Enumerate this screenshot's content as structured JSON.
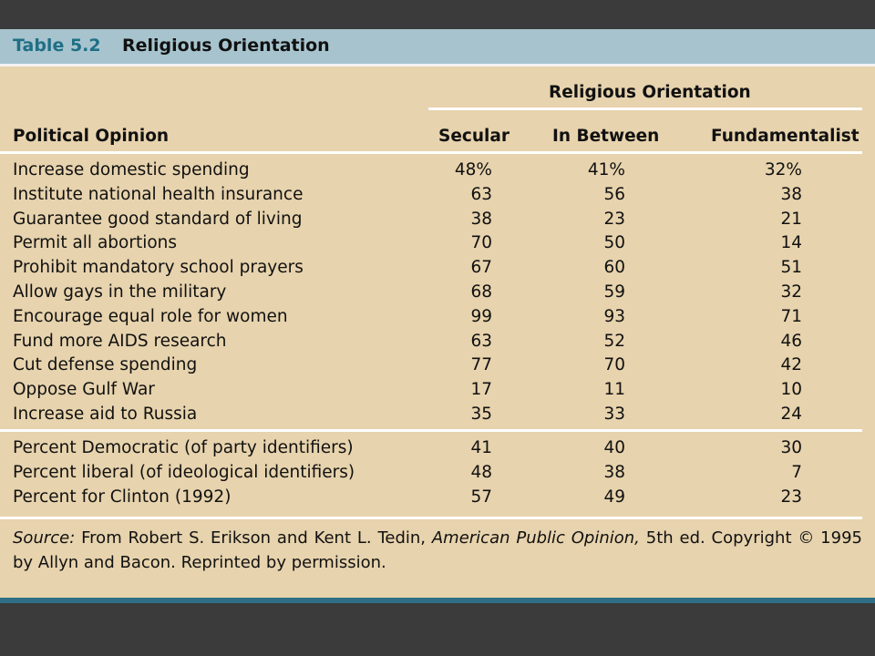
{
  "table": {
    "number": "Table 5.2",
    "title": "Religious Orientation",
    "group_header": "Religious Orientation",
    "row_header": "Political Opinion",
    "columns": [
      "Secular",
      "In Between",
      "Fundamentalist"
    ],
    "rows": [
      {
        "label": "Increase domestic spending",
        "values": [
          "48%",
          "41%",
          "32%"
        ]
      },
      {
        "label": "Institute national health insurance",
        "values": [
          "63",
          "56",
          "38"
        ]
      },
      {
        "label": "Guarantee good standard of living",
        "values": [
          "38",
          "23",
          "21"
        ]
      },
      {
        "label": "Permit all abortions",
        "values": [
          "70",
          "50",
          "14"
        ]
      },
      {
        "label": "Prohibit mandatory school prayers",
        "values": [
          "67",
          "60",
          "51"
        ]
      },
      {
        "label": "Allow gays in the military",
        "values": [
          "68",
          "59",
          "32"
        ]
      },
      {
        "label": "Encourage equal role for women",
        "values": [
          "99",
          "93",
          "71"
        ]
      },
      {
        "label": "Fund more AIDS research",
        "values": [
          "63",
          "52",
          "46"
        ]
      },
      {
        "label": "Cut defense spending",
        "values": [
          "77",
          "70",
          "42"
        ]
      },
      {
        "label": "Oppose Gulf War",
        "values": [
          "17",
          "11",
          "10"
        ]
      },
      {
        "label": "Increase aid to Russia",
        "values": [
          "35",
          "33",
          "24"
        ]
      }
    ],
    "summary_rows": [
      {
        "label": "Percent Democratic (of party identifiers)",
        "values": [
          "41",
          "40",
          "30"
        ]
      },
      {
        "label": "Percent liberal (of ideological identifiers)",
        "values": [
          "48",
          "38",
          "7"
        ]
      },
      {
        "label": "Percent for Clinton (1992)",
        "values": [
          "57",
          "49",
          "23"
        ]
      }
    ],
    "source": {
      "label": "Source:",
      "text1": " From Robert S. Erikson and Kent L. Tedin, ",
      "book": "American Public Opinion,",
      "text2": " 5th ed. Copyright © 1995 by Allyn and Bacon. Reprinted by permission."
    }
  }
}
